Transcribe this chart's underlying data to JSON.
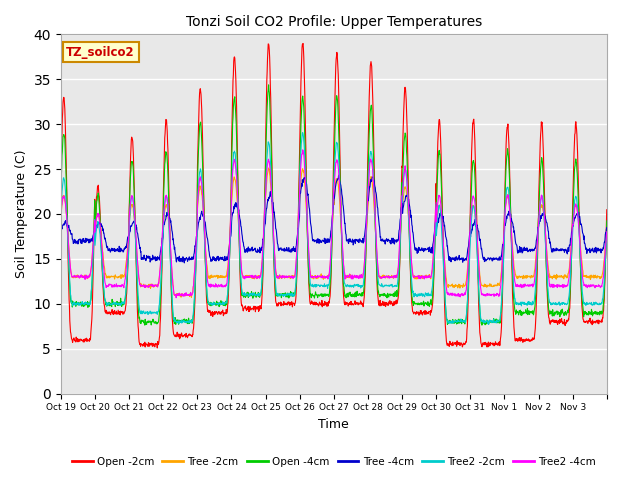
{
  "title": "Tonzi Soil CO2 Profile: Upper Temperatures",
  "xlabel": "Time",
  "ylabel": "Soil Temperature (C)",
  "ylim": [
    0,
    40
  ],
  "background_color": "#e8e8e8",
  "series": {
    "Open -2cm": {
      "color": "#ff0000"
    },
    "Tree -2cm": {
      "color": "#ffa500"
    },
    "Open -4cm": {
      "color": "#00cc00"
    },
    "Tree -4cm": {
      "color": "#0000cc"
    },
    "Tree2 -2cm": {
      "color": "#00cccc"
    },
    "Tree2 -4cm": {
      "color": "#ff00ff"
    }
  },
  "xtick_labels": [
    "Oct 19",
    "Oct 20",
    "Oct 21",
    "Oct 22",
    "Oct 23",
    "Oct 24",
    "Oct 25",
    "Oct 26",
    "Oct 27",
    "Oct 28",
    "Oct 29",
    "Oct 30",
    "Oct 31",
    "Nov 1",
    "Nov 2",
    "Nov 3"
  ],
  "annotation_box": "TZ_soilco2",
  "annotation_color": "#cc0000",
  "annotation_bg": "#ffffcc",
  "annotation_border": "#cc8800",
  "figsize": [
    6.4,
    4.8
  ],
  "dpi": 100
}
